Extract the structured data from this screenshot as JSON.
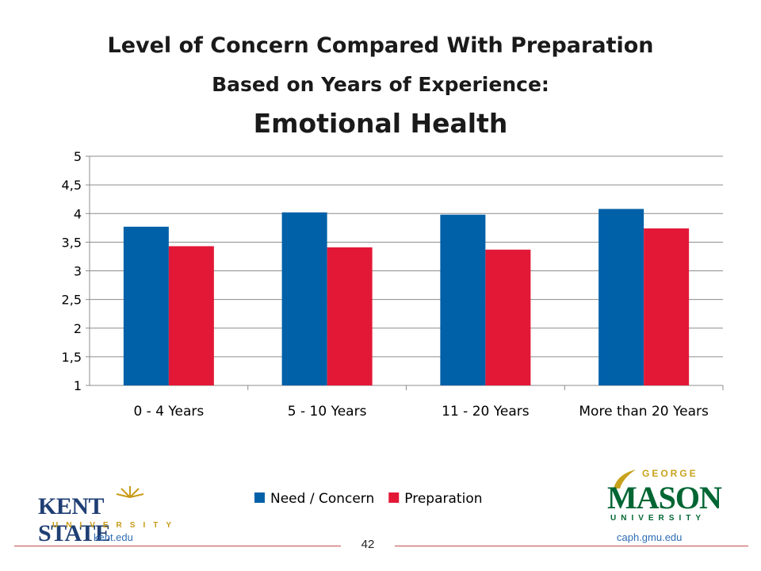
{
  "slide": {
    "title_line1": "Level of Concern Compared With Preparation",
    "title_line2": "Based on Years of Experience:",
    "title_line3": "Emotional Health",
    "page_number": "42"
  },
  "footer": {
    "left_logo_text": "KENT STATE",
    "left_logo_subtext": "UNIVERSITY",
    "left_url": "kent.edu",
    "right_logo_top": "GEORGE",
    "right_logo_text": "MASON",
    "right_logo_subtext": "UNIVERSITY",
    "right_url": "caph.gmu.edu"
  },
  "chart_data": {
    "type": "bar",
    "categories": [
      "0 - 4 Years",
      "5 - 10 Years",
      "11 - 20 Years",
      "More than 20 Years"
    ],
    "series": [
      {
        "name": "Need / Concern",
        "color": "#0060a8",
        "values": [
          3.77,
          4.02,
          3.98,
          4.08
        ]
      },
      {
        "name": "Preparation",
        "color": "#e31837",
        "values": [
          3.43,
          3.41,
          3.37,
          3.74
        ]
      }
    ],
    "ylim": [
      1,
      5
    ],
    "yticks": [
      "1",
      "1,5",
      "2",
      "2,5",
      "3",
      "3,5",
      "4",
      "4,5",
      "5"
    ],
    "ytick_values": [
      1,
      1.5,
      2,
      2.5,
      3,
      3.5,
      4,
      4.5,
      5
    ],
    "grid": true,
    "legend_position": "bottom"
  }
}
